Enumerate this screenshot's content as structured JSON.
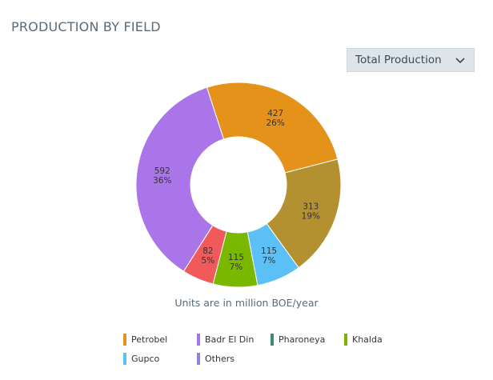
{
  "header": {
    "title": "PRODUCTION BY FIELD"
  },
  "controls": {
    "dropdown_value": "Total Production"
  },
  "footer": {
    "note": "Units are in million BOE/year"
  },
  "legend": [
    {
      "label": "Petrobel",
      "color": "#E5921B"
    },
    {
      "label": "Badr El Din",
      "color": "#A975E8"
    },
    {
      "label": "Pharoneya",
      "color": "#3E8A70"
    },
    {
      "label": "Khalda",
      "color": "#7AB800"
    },
    {
      "label": "Gupco",
      "color": "#5BC0F5"
    },
    {
      "label": "Others",
      "color": "#8B84E0"
    }
  ],
  "chart_data": {
    "type": "pie",
    "donut": true,
    "start_angle_deg": -18,
    "slices": [
      {
        "name": "Petrobel",
        "value": 427,
        "percent_label": "26%",
        "color": "#E5921B"
      },
      {
        "name": "",
        "value": 313,
        "percent_label": "19%",
        "color": "#B39130"
      },
      {
        "name": "Gupco",
        "value": 115,
        "percent_label": "7%",
        "color": "#5BC0F5"
      },
      {
        "name": "Khalda",
        "value": 115,
        "percent_label": "7%",
        "color": "#7AB800"
      },
      {
        "name": "",
        "value": 82,
        "percent_label": "5%",
        "color": "#F05A5A"
      },
      {
        "name": "Badr El Din",
        "value": 592,
        "percent_label": "36%",
        "color": "#A975E8"
      }
    ]
  }
}
